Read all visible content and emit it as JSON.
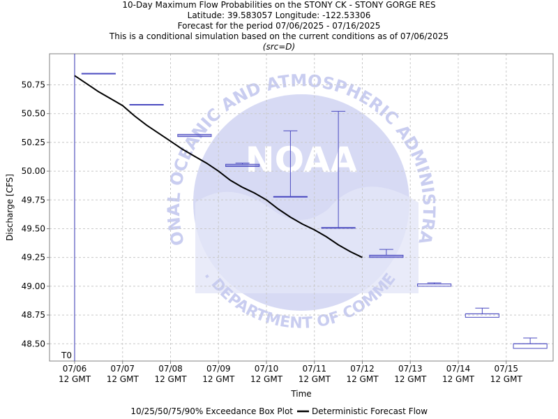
{
  "titles": {
    "line1": "10-Day Maximum Flow Probabilities on the STONY CK - STONY GORGE RES",
    "line2": "Latitude: 39.583057 Longitude: -122.53306",
    "line3": "Forecast for the period 07/06/2025 - 07/16/2025",
    "line4": "This is a conditional simulation based on the current conditions as of 07/06/2025",
    "line5": "(src=D)"
  },
  "watermark": {
    "center_text": "NOAA",
    "ring_text": "NATIONAL OCEANIC AND ATMOSPHERIC ADMINISTRATION",
    "bottom_text": "U.S. DEPARTMENT OF COMMERCE"
  },
  "colors": {
    "box": "#4a4ac0",
    "deterministic": "#000000",
    "t0_line": "#3030b0",
    "grid": "#c8c8c8",
    "watermark": "#c9cdf0"
  },
  "chart_data": {
    "type": "box",
    "title": "10-Day Maximum Flow Probabilities on the STONY CK - STONY GORGE RES",
    "xlabel": "Time",
    "ylabel": "Discharge [CFS]",
    "ylim": [
      48.35,
      51.02
    ],
    "xlim_days": [
      -0.5,
      9.8
    ],
    "grid": true,
    "t0_label": "T0",
    "x_ticks": [
      {
        "line1": "07/06",
        "line2": "12 GMT"
      },
      {
        "line1": "07/07",
        "line2": "12 GMT"
      },
      {
        "line1": "07/08",
        "line2": "12 GMT"
      },
      {
        "line1": "07/09",
        "line2": "12 GMT"
      },
      {
        "line1": "07/10",
        "line2": "12 GMT"
      },
      {
        "line1": "07/11",
        "line2": "12 GMT"
      },
      {
        "line1": "07/12",
        "line2": "12 GMT"
      },
      {
        "line1": "07/13",
        "line2": "12 GMT"
      },
      {
        "line1": "07/14",
        "line2": "12 GMT"
      },
      {
        "line1": "07/15",
        "line2": "12 GMT"
      }
    ],
    "y_ticks": [
      "48.50",
      "48.75",
      "49.00",
      "49.25",
      "49.50",
      "49.75",
      "50.00",
      "50.25",
      "50.50",
      "50.75"
    ],
    "boxes": [
      {
        "period": "07/06 - 07/07",
        "p10": 50.85,
        "p25": 50.85,
        "p50": 50.85,
        "p75": 50.85,
        "p90": 50.85
      },
      {
        "period": "07/07 - 07/08",
        "p10": 50.58,
        "p25": 50.58,
        "p50": 50.58,
        "p75": 50.58,
        "p90": 50.58
      },
      {
        "period": "07/08 - 07/09",
        "p10": 50.3,
        "p25": 50.3,
        "p50": 50.31,
        "p75": 50.32,
        "p90": 50.32
      },
      {
        "period": "07/09 - 07/10",
        "p10": 50.04,
        "p25": 50.04,
        "p50": 50.05,
        "p75": 50.06,
        "p90": 50.07
      },
      {
        "period": "07/10 - 07/11",
        "p10": 49.78,
        "p25": 49.78,
        "p50": 49.78,
        "p75": 49.78,
        "p90": 50.35
      },
      {
        "period": "07/11 - 07/12",
        "p10": 49.51,
        "p25": 49.51,
        "p50": 49.51,
        "p75": 49.51,
        "p90": 50.52
      },
      {
        "period": "07/12 - 07/13",
        "p10": 49.25,
        "p25": 49.25,
        "p50": 49.26,
        "p75": 49.27,
        "p90": 49.32
      },
      {
        "period": "07/13 - 07/14",
        "p10": 49.0,
        "p25": 49.0,
        "p50": 49.02,
        "p75": 49.02,
        "p90": 49.03
      },
      {
        "period": "07/14 - 07/15",
        "p10": 48.73,
        "p25": 48.73,
        "p50": 48.76,
        "p75": 48.76,
        "p90": 48.81
      },
      {
        "period": "07/15 - 07/16",
        "p10": 48.46,
        "p25": 48.46,
        "p50": 48.5,
        "p75": 48.5,
        "p90": 48.55
      }
    ],
    "deterministic": {
      "x_days": [
        0.0,
        0.25,
        0.5,
        0.75,
        1.0,
        1.25,
        1.5,
        1.75,
        2.0,
        2.25,
        2.5,
        2.75,
        3.0,
        3.25,
        3.5,
        3.75,
        4.0,
        4.25,
        4.5,
        4.75,
        5.0,
        5.25,
        5.5,
        5.75,
        6.0
      ],
      "values": [
        50.83,
        50.76,
        50.69,
        50.63,
        50.57,
        50.48,
        50.4,
        50.33,
        50.26,
        50.19,
        50.13,
        50.07,
        50.0,
        49.92,
        49.86,
        49.81,
        49.75,
        49.67,
        49.6,
        49.54,
        49.49,
        49.43,
        49.36,
        49.3,
        49.25
      ]
    },
    "legend": {
      "placement": "bottom",
      "box_label": "10/25/50/75/90% Exceedance Box Plot",
      "line_label": "Deterministic Forecast Flow"
    }
  }
}
